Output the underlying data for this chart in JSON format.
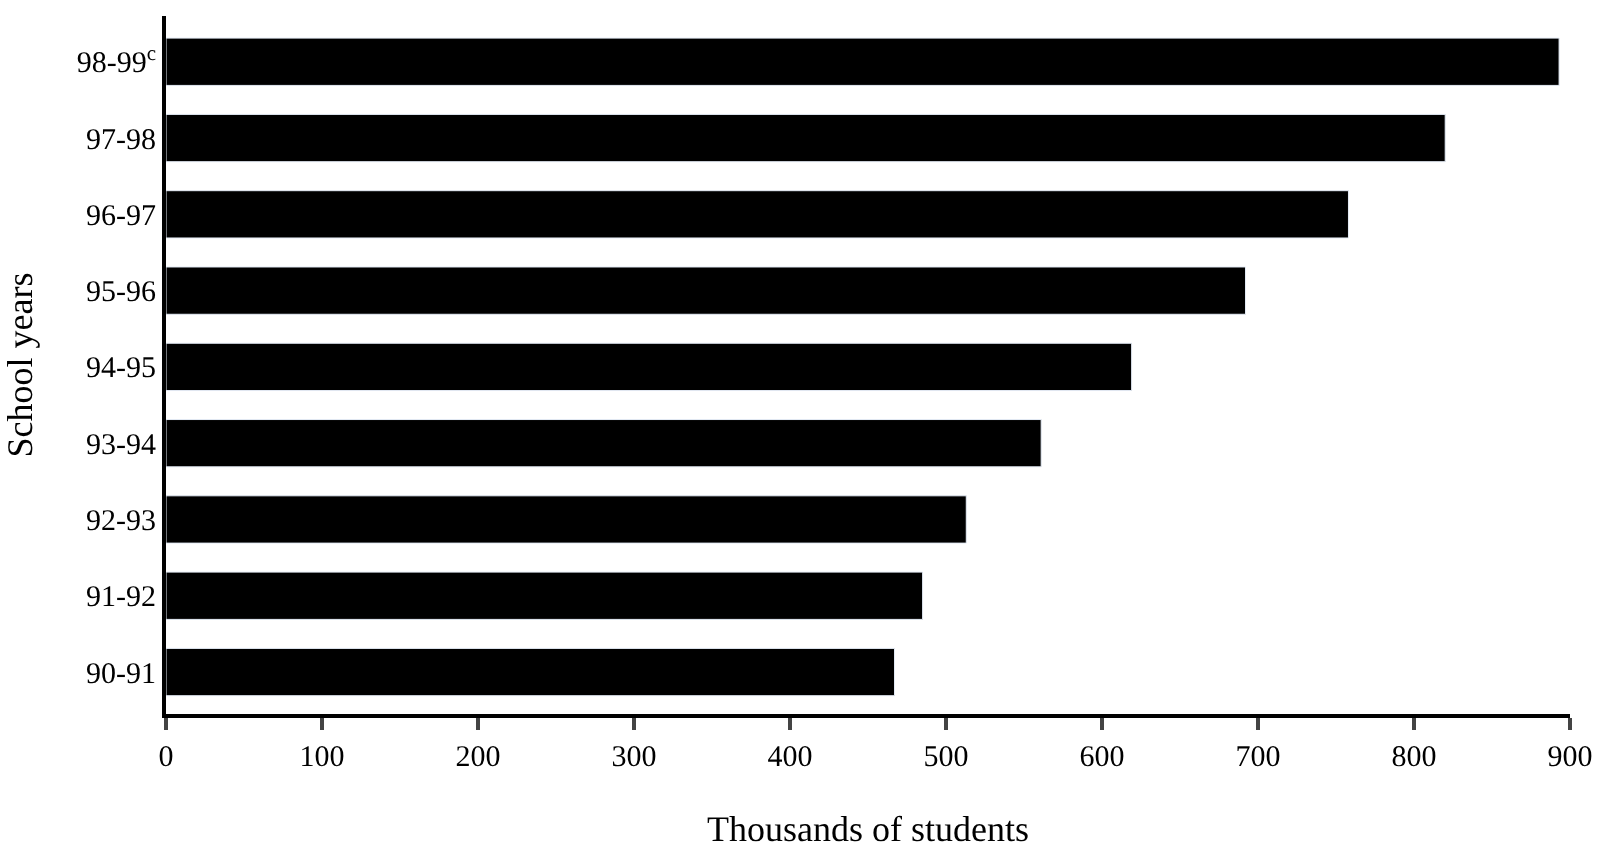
{
  "chart_data": {
    "type": "bar",
    "orientation": "horizontal",
    "categories": [
      "98-99$^{c}$",
      "97-98",
      "96-97",
      "95-96",
      "94-95",
      "93-94",
      "92-93",
      "91-92",
      "90-91"
    ],
    "values": [
      893,
      820,
      758,
      692,
      619,
      561,
      513,
      485,
      467
    ],
    "color": "#000000",
    "xlabel": "Thousands of students",
    "ylabel": "School years",
    "xlim": [
      0,
      900
    ],
    "xticks": [
      0,
      100,
      200,
      300,
      400,
      500,
      600,
      700,
      800,
      900
    ],
    "marker": "none"
  }
}
